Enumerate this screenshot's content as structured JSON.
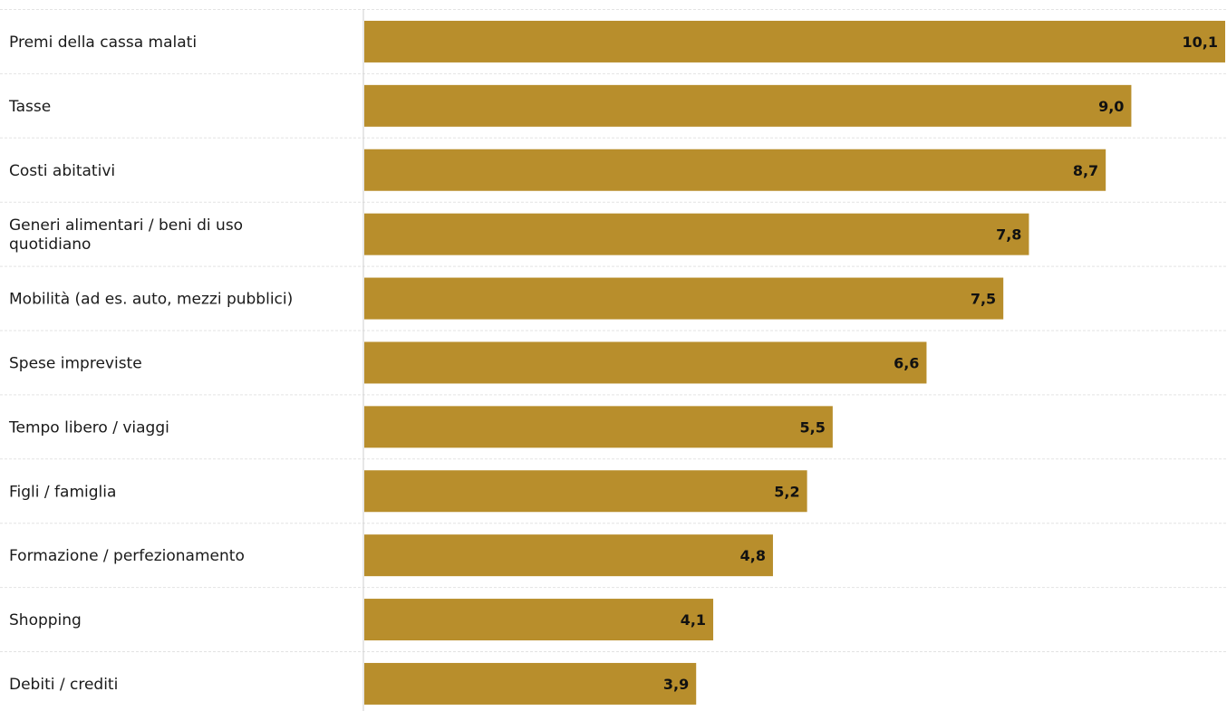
{
  "chart_data": {
    "type": "bar",
    "orientation": "horizontal",
    "categories": [
      [
        "Premi della cassa malati"
      ],
      [
        "Tasse"
      ],
      [
        "Costi abitativi"
      ],
      [
        "Generi alimentari / beni di uso",
        "quotidiano"
      ],
      [
        "Mobilità (ad es. auto, mezzi pubblici)"
      ],
      [
        "Spese impreviste"
      ],
      [
        "Tempo libero / viaggi"
      ],
      [
        "Figli / famiglia"
      ],
      [
        "Formazione / perfezionamento"
      ],
      [
        "Shopping"
      ],
      [
        "Debiti / crediti"
      ]
    ],
    "values": [
      10.1,
      9.0,
      8.7,
      7.8,
      7.5,
      6.6,
      5.5,
      5.2,
      4.8,
      4.1,
      3.9
    ],
    "value_labels": [
      "10,1",
      "9,0",
      "8,7",
      "7,8",
      "7,5",
      "6,6",
      "5,5",
      "5,2",
      "4,8",
      "4,1",
      "3,9"
    ],
    "xlim": [
      0,
      10.1
    ],
    "grid": true,
    "bar_color": "#b88e2c",
    "label_color": "#111111"
  }
}
